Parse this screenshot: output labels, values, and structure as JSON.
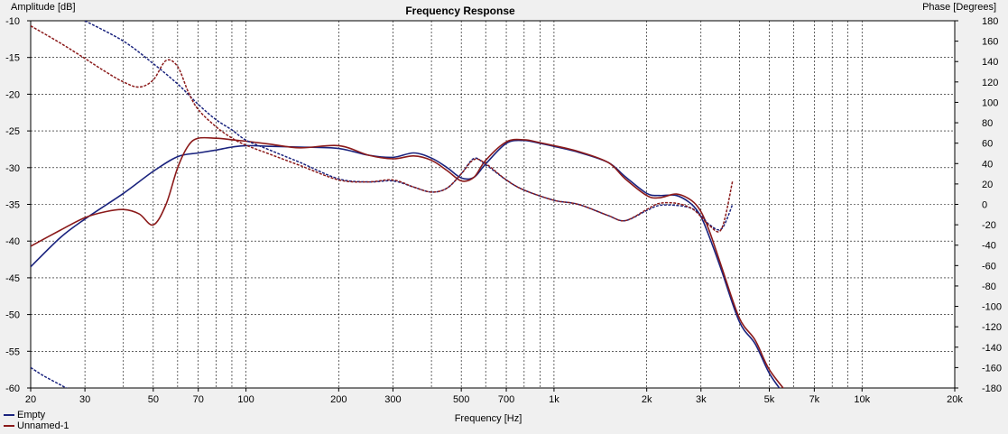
{
  "chart_data": {
    "type": "line",
    "title": "Frequency Response",
    "xlabel": "Frequency [Hz]",
    "ylabel": "Amplitude [dB]",
    "y2label": "Phase [Degrees]",
    "xscale": "log",
    "xlim": [
      20,
      20000
    ],
    "ylim": [
      -60,
      -10
    ],
    "y2lim": [
      -180,
      180
    ],
    "grid": true,
    "legend_position": "bottom-left",
    "x_ticks": [
      20,
      30,
      50,
      70,
      100,
      200,
      300,
      500,
      700,
      1000,
      2000,
      3000,
      5000,
      7000,
      10000,
      20000
    ],
    "x_tick_labels": [
      "20",
      "30",
      "50",
      "70",
      "100",
      "200",
      "300",
      "500",
      "700",
      "1k",
      "2k",
      "3k",
      "5k",
      "7k",
      "10k",
      "20k"
    ],
    "y_ticks": [
      -10,
      -15,
      -20,
      -25,
      -30,
      -35,
      -40,
      -45,
      -50,
      -55,
      -60
    ],
    "y2_ticks": [
      180,
      160,
      140,
      120,
      100,
      80,
      60,
      40,
      20,
      0,
      -20,
      -40,
      -60,
      -80,
      -100,
      -120,
      -140,
      -160,
      -180
    ],
    "y2_tick_labels": [
      "180",
      "160",
      "140",
      "120",
      "100",
      "80",
      "60",
      "40",
      "20",
      "0",
      "-20",
      "-40",
      "-60",
      "-80",
      "-100",
      "-120",
      "-140",
      "-160",
      "-180"
    ],
    "series": [
      {
        "name": "Empty",
        "color": "#1a237e",
        "style": "solid",
        "axis": "left",
        "x": [
          20,
          25,
          30,
          40,
          50,
          60,
          70,
          80,
          90,
          100,
          120,
          150,
          200,
          250,
          300,
          350,
          400,
          450,
          500,
          550,
          600,
          700,
          800,
          900,
          1000,
          1200,
          1500,
          1700,
          2000,
          2200,
          2500,
          2800,
          3000,
          3200,
          3500,
          4000,
          4500,
          5000,
          5500
        ],
        "y": [
          -43.5,
          -39.5,
          -37,
          -33.5,
          -30.5,
          -28.5,
          -28,
          -27.6,
          -27.2,
          -27,
          -27.1,
          -27.2,
          -27.4,
          -28.3,
          -28.6,
          -28,
          -28.7,
          -30,
          -31.4,
          -31.3,
          -29.5,
          -26.7,
          -26.3,
          -26.7,
          -27.1,
          -27.9,
          -29.3,
          -31.2,
          -33.5,
          -33.8,
          -33.8,
          -35,
          -36.7,
          -39.5,
          -44,
          -51,
          -54,
          -58,
          -60.5
        ]
      },
      {
        "name": "Unnamed-1",
        "color": "#8b1a1a",
        "style": "solid",
        "axis": "left",
        "x": [
          20,
          25,
          30,
          35,
          40,
          45,
          50,
          55,
          60,
          65,
          70,
          80,
          90,
          100,
          120,
          150,
          200,
          250,
          300,
          350,
          400,
          450,
          500,
          550,
          600,
          700,
          800,
          900,
          1000,
          1200,
          1500,
          1700,
          2000,
          2200,
          2500,
          2800,
          3000,
          3200,
          3500,
          4000,
          4500,
          5000,
          5800
        ],
        "y": [
          -40.7,
          -38.5,
          -36.8,
          -36,
          -35.7,
          -36.3,
          -37.8,
          -35,
          -30,
          -27,
          -26,
          -26,
          -26.2,
          -26.4,
          -26.8,
          -27.3,
          -27,
          -28.3,
          -28.8,
          -28.4,
          -29,
          -30.4,
          -31.8,
          -31.3,
          -29,
          -26.5,
          -26.2,
          -26.6,
          -27,
          -27.8,
          -29.3,
          -31.5,
          -33.8,
          -34.1,
          -33.6,
          -34.5,
          -36,
          -38.7,
          -43.5,
          -50.5,
          -53.5,
          -57.5,
          -61
        ]
      },
      {
        "name": "Empty phase",
        "color": "#1a237e",
        "style": "dashed",
        "axis": "right",
        "x": [
          20,
          22,
          25,
          28,
          30,
          40,
          50,
          60,
          70,
          80,
          90,
          100,
          120,
          150,
          200,
          250,
          300,
          350,
          400,
          450,
          500,
          550,
          600,
          700,
          800,
          1000,
          1200,
          1500,
          1700,
          2000,
          2200,
          2500,
          2800,
          3000,
          3200,
          3500,
          3800
        ],
        "y": [
          -160,
          -168,
          -177,
          -185,
          180,
          160,
          138,
          118,
          98,
          83,
          73,
          63,
          53,
          41,
          25,
          22,
          23,
          17,
          12,
          16,
          30,
          45,
          39,
          24,
          14,
          4,
          0,
          -11,
          -16,
          -6,
          -1,
          -1,
          -4,
          -11,
          -20,
          -24,
          0
        ]
      },
      {
        "name": "Unnamed-1 phase",
        "color": "#8b1a1a",
        "style": "dashed",
        "axis": "right",
        "x": [
          20,
          25,
          30,
          35,
          40,
          45,
          50,
          55,
          60,
          65,
          70,
          80,
          90,
          100,
          120,
          150,
          200,
          250,
          300,
          350,
          400,
          450,
          500,
          550,
          600,
          700,
          800,
          1000,
          1200,
          1500,
          1700,
          2000,
          2200,
          2500,
          2800,
          3000,
          3200,
          3500,
          3800
        ],
        "y": [
          175,
          158,
          143,
          130,
          120,
          115,
          122,
          141,
          135,
          110,
          93,
          76,
          65,
          58,
          49,
          38,
          24,
          22,
          24,
          17,
          12,
          16,
          30,
          44,
          40,
          24,
          14,
          4,
          0,
          -11,
          -16,
          -5,
          1,
          1,
          -4,
          -12,
          -21,
          -24,
          23
        ]
      }
    ]
  },
  "legend": {
    "items": [
      {
        "label": "Empty",
        "color": "#1a237e"
      },
      {
        "label": "Unnamed-1",
        "color": "#8b1a1a"
      }
    ]
  }
}
